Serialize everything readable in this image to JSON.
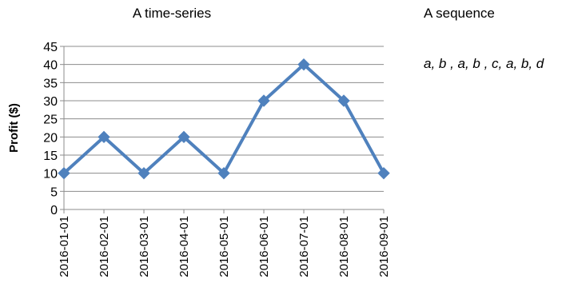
{
  "chart_data": {
    "type": "line",
    "title": "A time-series",
    "xlabel": "",
    "ylabel": "Profit ($)",
    "categories": [
      "2016-01-01",
      "2016-02-01",
      "2016-03-01",
      "2016-04-01",
      "2016-05-01",
      "2016-06-01",
      "2016-07-01",
      "2016-08-01",
      "2016-09-01"
    ],
    "series": [
      {
        "values": [
          10,
          20,
          10,
          20,
          10,
          30,
          40,
          30,
          10
        ]
      }
    ],
    "ylim": [
      0,
      45
    ],
    "yticks": [
      0,
      5,
      10,
      15,
      20,
      25,
      30,
      35,
      40,
      45
    ],
    "grid": "horizontal",
    "legend": "none",
    "line_color": "#4F81BD",
    "marker": "diamond"
  },
  "sequence": {
    "title": "A sequence",
    "text": "a, b , a, b , c, a, b, d"
  }
}
